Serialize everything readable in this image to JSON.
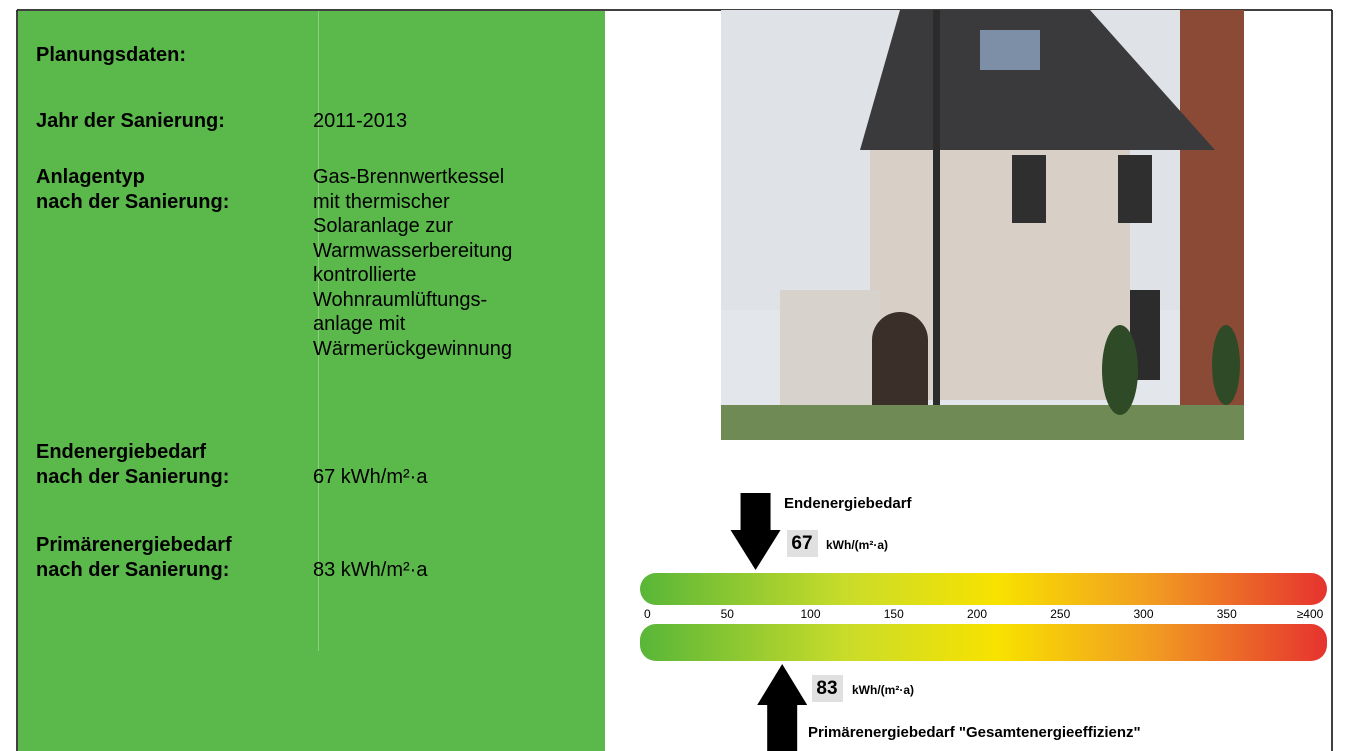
{
  "left": {
    "heading": "Planungsdaten:",
    "rows": [
      {
        "label": [
          "Jahr der Sanierung:"
        ],
        "value": [
          "2011-2013"
        ]
      },
      {
        "label": [
          "Anlagentyp",
          "nach der Sanierung:"
        ],
        "value": [
          "Gas-Brennwertkessel",
          "mit thermischer",
          "Solaranlage zur",
          "Warmwasserbereitung",
          "kontrollierte",
          "Wohnraumlüftungs-",
          "anlage mit",
          "Wärmerückgewinnung"
        ]
      },
      {
        "label": [
          "Endenergiebedarf",
          "nach der Sanierung:"
        ],
        "value": [
          "67 kWh/m²·a"
        ]
      },
      {
        "label": [
          "Primärenergiebedarf",
          "nach der Sanierung:"
        ],
        "value": [
          "83 kWh/m²·a"
        ]
      }
    ]
  },
  "scale": {
    "xlim": [
      0,
      400
    ],
    "ticks": [
      0,
      50,
      100,
      150,
      200,
      250,
      300,
      350,
      {
        "value": 400,
        "label": "≥400"
      }
    ],
    "end": {
      "title": "Endenergiebedarf",
      "value": 67,
      "unit": "kWh/(m²·a)"
    },
    "primary": {
      "title": "Primärenergiebedarf \"Gesamtenergieeffizienz\"",
      "value": 83,
      "unit": "kWh/(m²·a)"
    }
  }
}
